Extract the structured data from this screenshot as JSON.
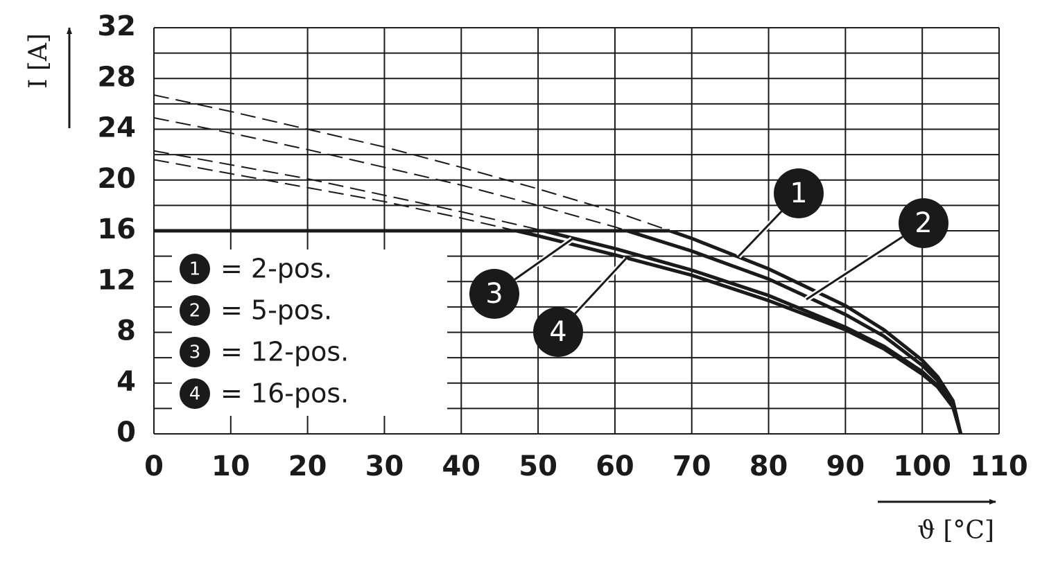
{
  "chart_data": {
    "type": "line",
    "x_label": "ϑ [°C]",
    "y_label": "I [A]",
    "x": [
      0,
      10,
      20,
      30,
      40,
      50,
      60,
      70,
      80,
      90,
      95,
      100,
      102,
      104,
      105
    ],
    "series": [
      {
        "name": "= 2-pos.",
        "badge": "1",
        "color": "#1a1a1a",
        "values": [
          26.7,
          25.4,
          24.0,
          22.6,
          21.0,
          19.3,
          17.5,
          15.4,
          13.0,
          10.1,
          8.2,
          5.8,
          4.5,
          2.6,
          0
        ]
      },
      {
        "name": "= 5-pos.",
        "badge": "2",
        "color": "#1a1a1a",
        "values": [
          24.9,
          23.7,
          22.4,
          21.0,
          19.6,
          18.0,
          16.3,
          14.4,
          12.2,
          9.4,
          7.7,
          5.4,
          4.2,
          2.4,
          0
        ]
      },
      {
        "name": "= 12-pos.",
        "badge": "3",
        "color": "#1a1a1a",
        "values": [
          22.3,
          21.2,
          20.1,
          18.8,
          17.5,
          16.1,
          14.6,
          12.9,
          10.9,
          8.4,
          6.9,
          4.9,
          3.8,
          2.2,
          0
        ]
      },
      {
        "name": "= 16-pos.",
        "badge": "4",
        "color": "#1a1a1a",
        "values": [
          21.6,
          20.5,
          19.4,
          18.3,
          17.0,
          15.6,
          14.1,
          12.5,
          10.5,
          8.2,
          6.7,
          4.7,
          3.7,
          2.1,
          0
        ]
      }
    ],
    "limit": 16,
    "xlim": [
      0,
      110
    ],
    "ylim": [
      0,
      32
    ],
    "xticks": [
      0,
      10,
      20,
      30,
      40,
      50,
      60,
      70,
      80,
      90,
      100,
      110
    ],
    "yticks": [
      0,
      4,
      8,
      12,
      16,
      20,
      24,
      28,
      32
    ],
    "yminor": [
      2,
      6,
      10,
      14,
      18,
      22,
      26,
      30
    ],
    "grid": true
  }
}
